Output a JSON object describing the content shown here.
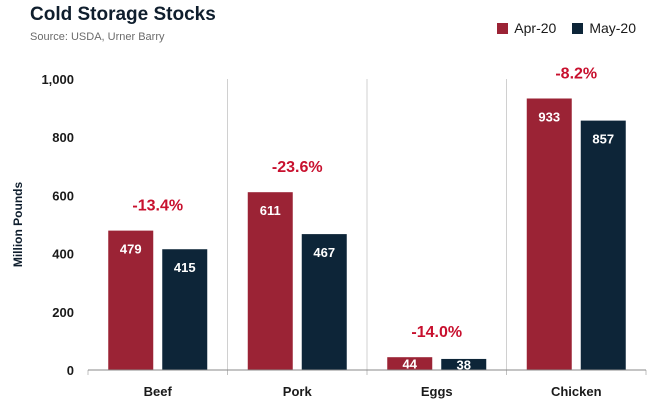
{
  "chart_data": {
    "type": "bar",
    "title": "Cold Storage Stocks",
    "subtitle": "Source: USDA, Urner Barry",
    "xlabel": "",
    "ylabel": "Million Pounds",
    "ylim": [
      0,
      1000
    ],
    "yticks": [
      0,
      200,
      400,
      600,
      800,
      1000
    ],
    "ytick_labels": [
      "0",
      "200",
      "400",
      "600",
      "800",
      "1,000"
    ],
    "categories": [
      "Beef",
      "Pork",
      "Eggs",
      "Chicken"
    ],
    "series": [
      {
        "name": "Apr-20",
        "values": [
          479,
          611,
          44,
          933
        ],
        "color": "#9b2335"
      },
      {
        "name": "May-20",
        "values": [
          415,
          467,
          38,
          857
        ],
        "color": "#0d2538"
      }
    ],
    "annotations": [
      "-13.4%",
      "-23.6%",
      "-14.0%",
      "-8.2%"
    ],
    "annotation_color": "#c8102e",
    "legend_position": "top-right",
    "grid": false
  }
}
